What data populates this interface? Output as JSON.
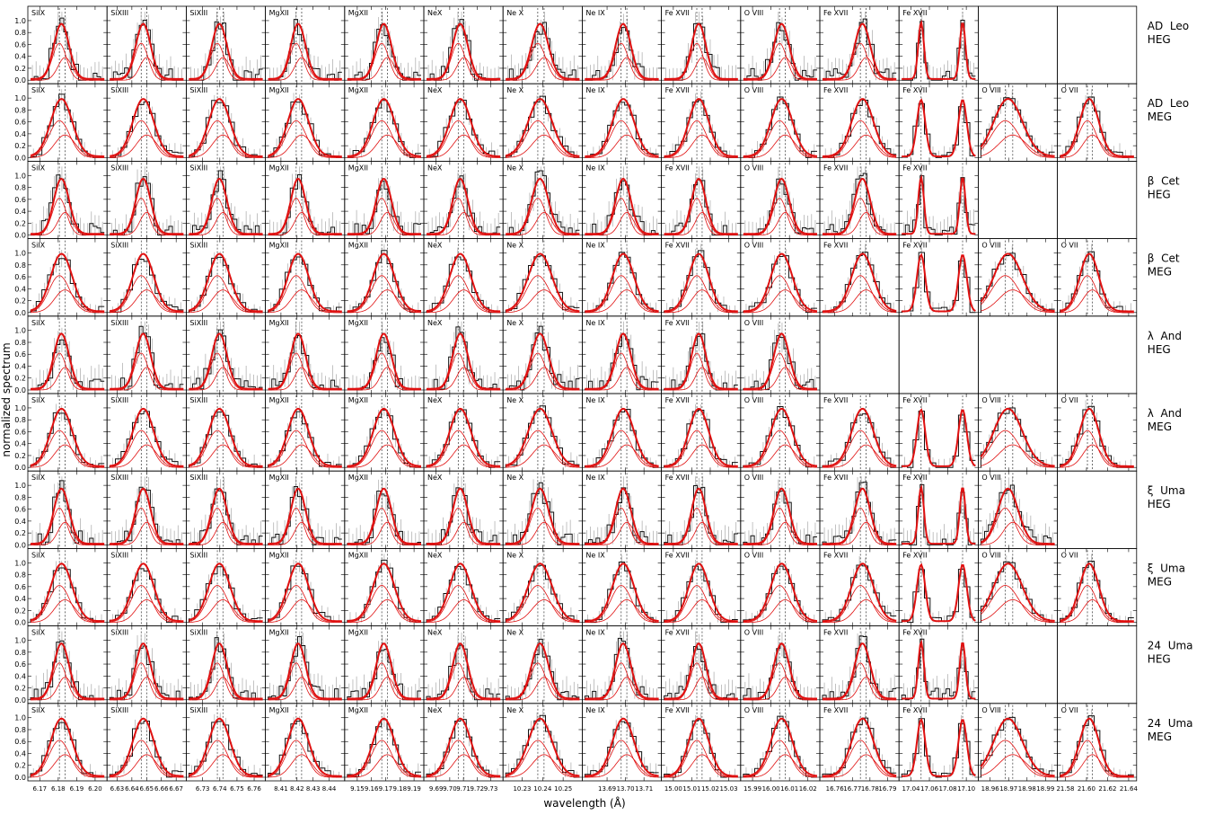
{
  "figure": {
    "xlabel": "wavelength (Å)",
    "ylabel": "normalized spectrum",
    "yticks": [
      "0.0",
      "0.2",
      "0.4",
      "0.6",
      "0.8",
      "1.0"
    ]
  },
  "colors": {
    "observed": "#111111",
    "model": "#e01010",
    "errorbar": "#9a9a9a",
    "reference_line": "#333333"
  },
  "chart_data": {
    "type": "line",
    "ylim": [
      0,
      1.15
    ],
    "series_kinds": [
      "observed spectrum (histogram)",
      "total model",
      "model components"
    ],
    "panel_lines": [
      "SiIX",
      "SiXIII",
      "SiXIII",
      "MgXII",
      "MgXII",
      "NeX",
      "Ne X",
      "Ne IX",
      "Fe XVII",
      "O VIII",
      "Fe XVII",
      "Fe XVII",
      "O VIII",
      "O VII"
    ],
    "columns": [
      {
        "line": "SiIX",
        "xlim": [
          6.165,
          6.205
        ],
        "xticks": [
          "6.17",
          "6.18",
          "6.19",
          "6.20"
        ],
        "peaks": [
          6.182
        ],
        "width": 0.0045
      },
      {
        "line": "SiXIII",
        "xlim": [
          6.625,
          6.675
        ],
        "xticks": [
          "6.63",
          "6.64",
          "6.65",
          "6.66",
          "6.67"
        ],
        "peaks": [
          6.648
        ],
        "width": 0.0055
      },
      {
        "line": "SiXIII",
        "xlim": [
          6.722,
          6.765
        ],
        "xticks": [
          "6.73",
          "6.74",
          "6.75",
          "6.76"
        ],
        "peaks": [
          6.74
        ],
        "width": 0.0048
      },
      {
        "line": "MgXII",
        "xlim": [
          8.402,
          8.448
        ],
        "xticks": [
          "8.41",
          "8.42",
          "8.43",
          "8.44"
        ],
        "peaks": [
          8.421
        ],
        "width": 0.005
      },
      {
        "line": "MgXII",
        "xlim": [
          9.143,
          9.195
        ],
        "xticks": [
          "9.15",
          "9.16",
          "9.17",
          "9.18",
          "9.19"
        ],
        "peaks": [
          9.169
        ],
        "width": 0.0058
      },
      {
        "line": "NeX",
        "xlim": [
          9.683,
          9.737
        ],
        "xticks": [
          "9.69",
          "9.70",
          "9.71",
          "9.72",
          "9.73"
        ],
        "peaks": [
          9.708
        ],
        "width": 0.006
      },
      {
        "line": "Ne X",
        "xlim": [
          10.222,
          10.258
        ],
        "xticks": [
          "10.23",
          "10.24",
          "10.25"
        ],
        "peaks": [
          10.239
        ],
        "width": 0.0045
      },
      {
        "line": "Ne IX",
        "xlim": [
          13.678,
          13.718
        ],
        "xticks": [
          "13.69",
          "13.70",
          "13.71"
        ],
        "peaks": [
          13.699
        ],
        "width": 0.0045
      },
      {
        "line": "Fe XVII",
        "xlim": [
          14.995,
          15.035
        ],
        "xticks": [
          "15.00",
          "15.01",
          "15.02",
          "15.03"
        ],
        "peaks": [
          15.014
        ],
        "width": 0.0042
      },
      {
        "line": "O VIII",
        "xlim": [
          15.985,
          16.025
        ],
        "xticks": [
          "15.99",
          "16.00",
          "16.01",
          "16.02"
        ],
        "peaks": [
          16.006
        ],
        "width": 0.0045
      },
      {
        "line": "Fe XVII",
        "xlim": [
          16.753,
          16.795
        ],
        "xticks": [
          "16.76",
          "16.77",
          "16.78",
          "16.79"
        ],
        "peaks": [
          16.776
        ],
        "width": 0.0048
      },
      {
        "line": "Fe XVII",
        "xlim": [
          17.03,
          17.11
        ],
        "xticks": [
          "17.04",
          "17.06",
          "17.08",
          "17.10"
        ],
        "peaks": [
          17.051,
          17.096
        ],
        "width": 0.0045
      },
      {
        "line": "O VIII",
        "xlim": [
          18.955,
          18.995
        ],
        "xticks": [
          "18.96",
          "18.97",
          "18.98",
          "18.99"
        ],
        "peaks": [
          18.97
        ],
        "width": 0.006
      },
      {
        "line": "O VII",
        "xlim": [
          21.575,
          21.645
        ],
        "xticks": [
          "21.58",
          "21.60",
          "21.62",
          "21.64"
        ],
        "peaks": [
          21.603
        ],
        "width": 0.007
      }
    ],
    "rows": [
      {
        "star": "AD  Leo",
        "grating": "HEG",
        "columns_shown": 12
      },
      {
        "star": "AD  Leo",
        "grating": "MEG",
        "columns_shown": 14
      },
      {
        "star": "β  Cet",
        "grating": "HEG",
        "columns_shown": 12
      },
      {
        "star": "β  Cet",
        "grating": "MEG",
        "columns_shown": 14
      },
      {
        "star": "λ  And",
        "grating": "HEG",
        "columns_shown": 10
      },
      {
        "star": "λ  And",
        "grating": "MEG",
        "columns_shown": 14
      },
      {
        "star": "ξ  Uma",
        "grating": "HEG",
        "columns_shown": 13
      },
      {
        "star": "ξ  Uma",
        "grating": "MEG",
        "columns_shown": 14
      },
      {
        "star": "24  Uma",
        "grating": "HEG",
        "columns_shown": 12
      },
      {
        "star": "24  Uma",
        "grating": "MEG",
        "columns_shown": 14
      }
    ]
  }
}
